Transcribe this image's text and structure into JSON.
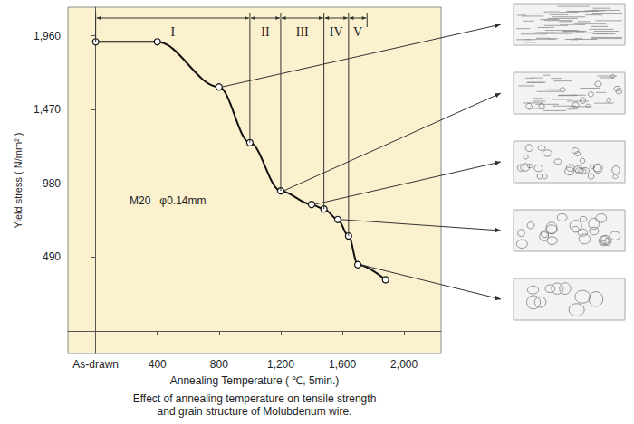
{
  "chart_data": {
    "type": "line",
    "title": "Effect of annealing temperature on tensile strength\nand grain structure of Molubdenum wire.",
    "x_label": "Annealing Temperature ( ℃, 5min.)",
    "y_label": "Yield stress ( N/mm² )",
    "annotation": "M20   φ0.14mm",
    "x": [
      0,
      400,
      800,
      1000,
      1200,
      1400,
      1480,
      1570,
      1640,
      1700,
      1880
    ],
    "values": [
      1920,
      1920,
      1620,
      1250,
      930,
      840,
      810,
      740,
      630,
      440,
      340
    ],
    "xlim": [
      -180,
      2240
    ],
    "xticks": [
      {
        "value": 0,
        "label": "As-drawn"
      },
      400,
      800,
      {
        "value": 1200,
        "label": "1,200"
      },
      {
        "value": 1600,
        "label": "1,600"
      },
      {
        "value": 2000,
        "label": "2,000"
      }
    ],
    "ylim": [
      -150,
      2150
    ],
    "yticks": [
      490,
      980,
      {
        "value": 1470,
        "label": "1,470"
      },
      {
        "value": 1960,
        "label": "1,960"
      }
    ],
    "grid": false,
    "color": "#111111",
    "marker": "circle",
    "line_style": "solid",
    "regions": [
      {
        "label": "I",
        "from": 0,
        "to": 1000
      },
      {
        "label": "II",
        "from": 1000,
        "to": 1200
      },
      {
        "label": "III",
        "from": 1200,
        "to": 1480
      },
      {
        "label": "IV",
        "from": 1480,
        "to": 1640
      },
      {
        "label": "V",
        "from": 1640,
        "to": 1760
      }
    ],
    "micrograph_x": [
      800,
      1200,
      1400,
      1570,
      1700
    ]
  }
}
